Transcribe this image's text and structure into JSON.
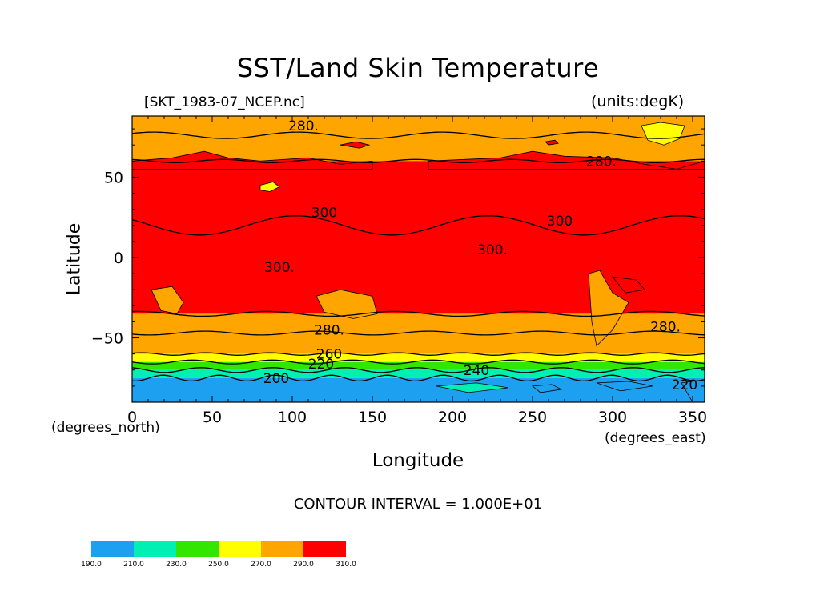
{
  "chart_data": {
    "type": "heatmap",
    "title": "SST/Land Skin Temperature",
    "source_file": "[SKT_1983-07_NCEP.nc]",
    "units": "(units:degK)",
    "xlabel": "Longitude",
    "ylabel": "Latitude",
    "x_units_left": "(degrees_north)",
    "x_units_right": "(degrees_east)",
    "contour_interval": "CONTOUR INTERVAL = 1.000E+01",
    "xlim": [
      0,
      357.5
    ],
    "ylim": [
      -90,
      88
    ],
    "x_ticks": [
      0,
      50,
      100,
      150,
      200,
      250,
      300,
      350
    ],
    "y_ticks": [
      50,
      0,
      -50
    ],
    "y_tick_labels": [
      "50",
      "0",
      "−50"
    ],
    "colorbar": {
      "levels": [
        "190.0",
        "210.0",
        "230.0",
        "250.0",
        "270.0",
        "290.0",
        "310.0"
      ],
      "colors": [
        "#1ea0f0",
        "#00f0b4",
        "#32e600",
        "#ffff00",
        "#ffa500",
        "#ff0000"
      ]
    },
    "latitude_bands": [
      {
        "lat_top": 88,
        "lat_bottom": 60,
        "range": "270-290"
      },
      {
        "lat_top": 60,
        "lat_bottom": -35,
        "range": "290-310"
      },
      {
        "lat_top": -35,
        "lat_bottom": -60,
        "range": "270-290"
      },
      {
        "lat_top": -60,
        "lat_bottom": -65,
        "range": "250-270"
      },
      {
        "lat_top": -65,
        "lat_bottom": -70,
        "range": "230-250"
      },
      {
        "lat_top": -70,
        "lat_bottom": -75,
        "range": "210-230"
      },
      {
        "lat_top": -75,
        "lat_bottom": -90,
        "range": "190-210"
      }
    ],
    "contour_labels": [
      {
        "lon": 107,
        "lat": 79,
        "text": "280."
      },
      {
        "lon": 293,
        "lat": 57,
        "text": "280."
      },
      {
        "lon": 120,
        "lat": 25,
        "text": "300"
      },
      {
        "lon": 267,
        "lat": 20,
        "text": "300"
      },
      {
        "lon": 225,
        "lat": 2,
        "text": "300."
      },
      {
        "lon": 92,
        "lat": -9,
        "text": "300."
      },
      {
        "lon": 123,
        "lat": -48,
        "text": "280."
      },
      {
        "lon": 333,
        "lat": -46,
        "text": "280."
      },
      {
        "lon": 123,
        "lat": -63,
        "text": "260"
      },
      {
        "lon": 118,
        "lat": -69,
        "text": "220"
      },
      {
        "lon": 90,
        "lat": -78,
        "text": "200"
      },
      {
        "lon": 215,
        "lat": -73,
        "text": "240"
      },
      {
        "lon": 345,
        "lat": -82,
        "text": "220"
      }
    ]
  }
}
